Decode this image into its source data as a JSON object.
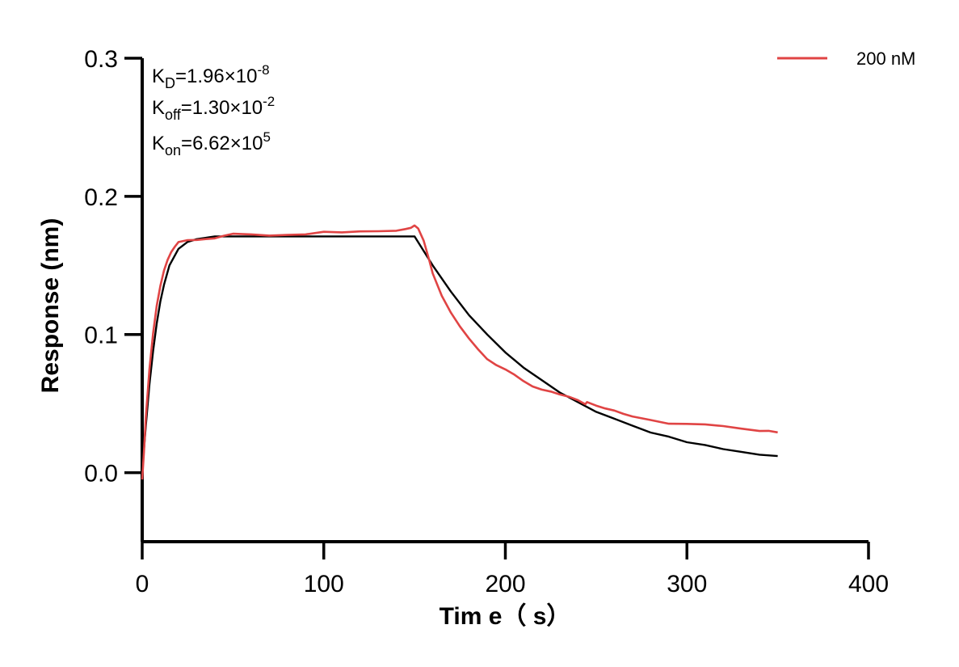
{
  "chart_data": {
    "type": "line",
    "xlabel": "Tim e（ s）",
    "ylabel": "Response (nm)",
    "xlim": [
      0,
      400
    ],
    "ylim": [
      -0.05,
      0.3
    ],
    "x_ticks": [
      "0",
      "100",
      "200",
      "300",
      "400"
    ],
    "y_ticks": [
      "0.0",
      "0.1",
      "0.2",
      "0.3"
    ],
    "grid": false,
    "legend_position": "top-right",
    "annotations": [
      {
        "base": "K",
        "sub": "D",
        "value": "=1.96×10",
        "exp": "-8"
      },
      {
        "base": "K",
        "sub": "off",
        "value": "=1.30×10",
        "exp": "-2"
      },
      {
        "base": "K",
        "sub": "on",
        "value": "=6.62×10",
        "exp": "5"
      }
    ],
    "series": [
      {
        "name": "200 nM",
        "color": "#e04444",
        "x": [
          0,
          1,
          2,
          4,
          6,
          8,
          10,
          12,
          14,
          16,
          18,
          20,
          25,
          30,
          35,
          40,
          45,
          50,
          60,
          70,
          80,
          90,
          100,
          110,
          120,
          130,
          140,
          145,
          148,
          150,
          152,
          155,
          158,
          160,
          165,
          170,
          175,
          180,
          185,
          190,
          195,
          200,
          205,
          210,
          215,
          220,
          225,
          230,
          235,
          240,
          244,
          245,
          250,
          255,
          260,
          265,
          270,
          280,
          290,
          300,
          310,
          320,
          330,
          340,
          345,
          350
        ],
        "y": [
          -0.005,
          0.015,
          0.04,
          0.075,
          0.1,
          0.12,
          0.135,
          0.147,
          0.155,
          0.16,
          0.163,
          0.166,
          0.168,
          0.169,
          0.17,
          0.17,
          0.171,
          0.172,
          0.172,
          0.172,
          0.173,
          0.173,
          0.174,
          0.173,
          0.174,
          0.175,
          0.176,
          0.177,
          0.177,
          0.178,
          0.176,
          0.168,
          0.155,
          0.145,
          0.128,
          0.115,
          0.105,
          0.097,
          0.09,
          0.083,
          0.078,
          0.074,
          0.07,
          0.066,
          0.063,
          0.061,
          0.059,
          0.056,
          0.054,
          0.052,
          0.05,
          0.052,
          0.049,
          0.046,
          0.044,
          0.042,
          0.041,
          0.039,
          0.036,
          0.035,
          0.034,
          0.033,
          0.032,
          0.031,
          0.031,
          0.029
        ]
      },
      {
        "color": "#000000",
        "x": [
          0,
          1,
          2,
          4,
          6,
          8,
          10,
          12,
          15,
          20,
          25,
          30,
          40,
          50,
          75,
          100,
          125,
          150,
          160,
          170,
          180,
          190,
          200,
          210,
          220,
          230,
          240,
          250,
          260,
          270,
          280,
          290,
          300,
          310,
          320,
          330,
          340,
          350
        ],
        "y": [
          0.0,
          0.017,
          0.034,
          0.064,
          0.088,
          0.108,
          0.124,
          0.136,
          0.15,
          0.162,
          0.167,
          0.169,
          0.171,
          0.171,
          0.171,
          0.171,
          0.171,
          0.171,
          0.15,
          0.131,
          0.114,
          0.1,
          0.087,
          0.076,
          0.067,
          0.058,
          0.051,
          0.044,
          0.039,
          0.034,
          0.029,
          0.026,
          0.022,
          0.02,
          0.017,
          0.015,
          0.013,
          0.012
        ]
      }
    ]
  }
}
